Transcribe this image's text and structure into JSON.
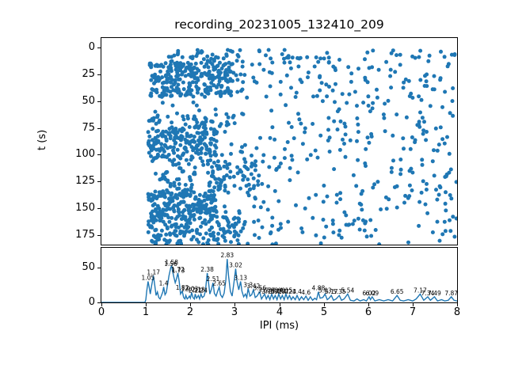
{
  "figure": {
    "title": "recording_20231005_132410_209",
    "background": "#ffffff"
  },
  "colors": {
    "accent": "#1f77b4",
    "text": "#000000",
    "axis": "#000000"
  },
  "chart_data": [
    {
      "type": "scatter",
      "title": "recording_20231005_132410_209",
      "xlabel": "",
      "ylabel": "t (s)",
      "xlim": [
        0,
        8
      ],
      "ylim": [
        -9,
        184
      ],
      "invert_y": true,
      "yticks": [
        0,
        25,
        50,
        75,
        100,
        125,
        150,
        175
      ],
      "grid": false,
      "marker_color": "#1f77b4",
      "marker_radius": 2.5,
      "seed": 20231005,
      "note": "dense noisy scatter of inter-pulse intervals vs recording time; no points below 1 ms",
      "density_clusters": [
        {
          "x0": 1.5,
          "x1": 3.2,
          "t0": 2,
          "t1": 14,
          "n": 40
        },
        {
          "x0": 3.2,
          "x1": 8.0,
          "t0": 2,
          "t1": 14,
          "n": 45
        },
        {
          "x0": 1.05,
          "x1": 2.95,
          "t0": 14,
          "t1": 46,
          "n": 270
        },
        {
          "x0": 2.95,
          "x1": 8.0,
          "t0": 14,
          "t1": 46,
          "n": 90
        },
        {
          "x0": 1.1,
          "x1": 8.0,
          "t0": 46,
          "t1": 63,
          "n": 40
        },
        {
          "x0": 1.05,
          "x1": 3.0,
          "t0": 63,
          "t1": 76,
          "n": 55
        },
        {
          "x0": 3.0,
          "x1": 8.0,
          "t0": 63,
          "t1": 76,
          "n": 25
        },
        {
          "x0": 1.05,
          "x1": 2.6,
          "t0": 76,
          "t1": 106,
          "n": 190
        },
        {
          "x0": 2.6,
          "x1": 8.0,
          "t0": 76,
          "t1": 106,
          "n": 70
        },
        {
          "x0": 1.2,
          "x1": 3.6,
          "t0": 106,
          "t1": 133,
          "n": 120
        },
        {
          "x0": 3.6,
          "x1": 8.0,
          "t0": 106,
          "t1": 133,
          "n": 45
        },
        {
          "x0": 1.05,
          "x1": 2.6,
          "t0": 133,
          "t1": 158,
          "n": 190
        },
        {
          "x0": 2.6,
          "x1": 8.0,
          "t0": 133,
          "t1": 158,
          "n": 55
        },
        {
          "x0": 1.05,
          "x1": 3.1,
          "t0": 158,
          "t1": 184,
          "n": 170
        },
        {
          "x0": 3.1,
          "x1": 6.5,
          "t0": 158,
          "t1": 184,
          "n": 50
        },
        {
          "x0": 6.5,
          "x1": 8.0,
          "t0": 158,
          "t1": 184,
          "n": 12
        }
      ]
    },
    {
      "type": "line",
      "xlabel": "IPI (ms)",
      "ylabel": "",
      "xlim": [
        0,
        8
      ],
      "ylim": [
        0,
        78
      ],
      "xticks": [
        0,
        1,
        2,
        3,
        4,
        5,
        6,
        7,
        8
      ],
      "yticks": [
        0,
        50
      ],
      "grid": false,
      "line_color": "#1f77b4",
      "points": [
        [
          0,
          0
        ],
        [
          0.6,
          0
        ],
        [
          0.98,
          0
        ],
        [
          1.0,
          4
        ],
        [
          1.02,
          16
        ],
        [
          1.05,
          30
        ],
        [
          1.08,
          20
        ],
        [
          1.1,
          12
        ],
        [
          1.13,
          24
        ],
        [
          1.17,
          38
        ],
        [
          1.2,
          25
        ],
        [
          1.23,
          10
        ],
        [
          1.26,
          15
        ],
        [
          1.29,
          7
        ],
        [
          1.32,
          5
        ],
        [
          1.35,
          10
        ],
        [
          1.38,
          15
        ],
        [
          1.4,
          22
        ],
        [
          1.43,
          11
        ],
        [
          1.46,
          14
        ],
        [
          1.49,
          26
        ],
        [
          1.52,
          38
        ],
        [
          1.56,
          50
        ],
        [
          1.58,
          52
        ],
        [
          1.6,
          45
        ],
        [
          1.63,
          36
        ],
        [
          1.66,
          28
        ],
        [
          1.69,
          34
        ],
        [
          1.72,
          42
        ],
        [
          1.75,
          30
        ],
        [
          1.78,
          12
        ],
        [
          1.82,
          16
        ],
        [
          1.85,
          7
        ],
        [
          1.88,
          5
        ],
        [
          1.9,
          10
        ],
        [
          1.93,
          5
        ],
        [
          1.96,
          7
        ],
        [
          1.98,
          9
        ],
        [
          2.0,
          6
        ],
        [
          2.03,
          14
        ],
        [
          2.06,
          7
        ],
        [
          2.09,
          5
        ],
        [
          2.11,
          12
        ],
        [
          2.14,
          6
        ],
        [
          2.18,
          10
        ],
        [
          2.21,
          5
        ],
        [
          2.24,
          12
        ],
        [
          2.27,
          7
        ],
        [
          2.31,
          9
        ],
        [
          2.34,
          16
        ],
        [
          2.38,
          42
        ],
        [
          2.41,
          28
        ],
        [
          2.44,
          12
        ],
        [
          2.48,
          20
        ],
        [
          2.51,
          28
        ],
        [
          2.54,
          13
        ],
        [
          2.58,
          9
        ],
        [
          2.61,
          15
        ],
        [
          2.65,
          22
        ],
        [
          2.68,
          11
        ],
        [
          2.72,
          7
        ],
        [
          2.76,
          13
        ],
        [
          2.8,
          32
        ],
        [
          2.83,
          62
        ],
        [
          2.86,
          38
        ],
        [
          2.9,
          16
        ],
        [
          2.94,
          9
        ],
        [
          2.98,
          28
        ],
        [
          3.02,
          48
        ],
        [
          3.05,
          30
        ],
        [
          3.09,
          18
        ],
        [
          3.13,
          30
        ],
        [
          3.16,
          16
        ],
        [
          3.2,
          8
        ],
        [
          3.24,
          12
        ],
        [
          3.27,
          7
        ],
        [
          3.3,
          20
        ],
        [
          3.34,
          9
        ],
        [
          3.38,
          11
        ],
        [
          3.42,
          18
        ],
        [
          3.46,
          7
        ],
        [
          3.5,
          9
        ],
        [
          3.56,
          15
        ],
        [
          3.6,
          5
        ],
        [
          3.64,
          9
        ],
        [
          3.67,
          12
        ],
        [
          3.71,
          5
        ],
        [
          3.75,
          10
        ],
        [
          3.79,
          4
        ],
        [
          3.83,
          12
        ],
        [
          3.87,
          5
        ],
        [
          3.91,
          10
        ],
        [
          3.95,
          4
        ],
        [
          3.99,
          12
        ],
        [
          4.03,
          5
        ],
        [
          4.07,
          10
        ],
        [
          4.11,
          4
        ],
        [
          4.15,
          12
        ],
        [
          4.19,
          5
        ],
        [
          4.23,
          10
        ],
        [
          4.27,
          4
        ],
        [
          4.31,
          8
        ],
        [
          4.36,
          4
        ],
        [
          4.4,
          10
        ],
        [
          4.45,
          3
        ],
        [
          4.5,
          8
        ],
        [
          4.55,
          4
        ],
        [
          4.6,
          9
        ],
        [
          4.65,
          3
        ],
        [
          4.7,
          8
        ],
        [
          4.75,
          3
        ],
        [
          4.8,
          6
        ],
        [
          4.84,
          4
        ],
        [
          4.88,
          15
        ],
        [
          4.92,
          6
        ],
        [
          4.98,
          7
        ],
        [
          5.03,
          12
        ],
        [
          5.08,
          4
        ],
        [
          5.12,
          6
        ],
        [
          5.17,
          10
        ],
        [
          5.22,
          3
        ],
        [
          5.28,
          5
        ],
        [
          5.35,
          10
        ],
        [
          5.4,
          3
        ],
        [
          5.46,
          5
        ],
        [
          5.54,
          12
        ],
        [
          5.6,
          3
        ],
        [
          5.68,
          2
        ],
        [
          5.75,
          5
        ],
        [
          5.82,
          2
        ],
        [
          5.9,
          4
        ],
        [
          5.96,
          2
        ],
        [
          6.02,
          8
        ],
        [
          6.05,
          4
        ],
        [
          6.09,
          8
        ],
        [
          6.15,
          2
        ],
        [
          6.25,
          4
        ],
        [
          6.35,
          2
        ],
        [
          6.45,
          4
        ],
        [
          6.55,
          2
        ],
        [
          6.65,
          10
        ],
        [
          6.72,
          3
        ],
        [
          6.8,
          2
        ],
        [
          6.9,
          4
        ],
        [
          7.0,
          2
        ],
        [
          7.08,
          5
        ],
        [
          7.17,
          12
        ],
        [
          7.25,
          3
        ],
        [
          7.34,
          8
        ],
        [
          7.4,
          3
        ],
        [
          7.49,
          8
        ],
        [
          7.56,
          2
        ],
        [
          7.65,
          4
        ],
        [
          7.72,
          2
        ],
        [
          7.8,
          3
        ],
        [
          7.87,
          8
        ],
        [
          7.93,
          3
        ],
        [
          8.0,
          2
        ]
      ],
      "annotations": [
        {
          "x": 1.05,
          "y": 30,
          "label": "1.05"
        },
        {
          "x": 1.17,
          "y": 38,
          "label": "1.17"
        },
        {
          "x": 1.4,
          "y": 22,
          "label": "1.4"
        },
        {
          "x": 1.56,
          "y": 50,
          "label": "1.56"
        },
        {
          "x": 1.58,
          "y": 52,
          "label": "1.58"
        },
        {
          "x": 1.72,
          "y": 42,
          "label": "1.72"
        },
        {
          "x": 1.73,
          "y": 40,
          "label": "1.73"
        },
        {
          "x": 1.82,
          "y": 16,
          "label": "1.82"
        },
        {
          "x": 1.9,
          "y": 14,
          "label": "1.9"
        },
        {
          "x": 2.03,
          "y": 14,
          "label": "2.03"
        },
        {
          "x": 2.11,
          "y": 12,
          "label": "2.11"
        },
        {
          "x": 2.18,
          "y": 13,
          "label": "2.18"
        },
        {
          "x": 2.24,
          "y": 12,
          "label": "2.24"
        },
        {
          "x": 2.38,
          "y": 42,
          "label": "2.38"
        },
        {
          "x": 2.51,
          "y": 28,
          "label": "2.51"
        },
        {
          "x": 2.65,
          "y": 22,
          "label": "2.65"
        },
        {
          "x": 2.83,
          "y": 62,
          "label": "2.83"
        },
        {
          "x": 3.02,
          "y": 48,
          "label": "3.02"
        },
        {
          "x": 3.13,
          "y": 30,
          "label": "3.13"
        },
        {
          "x": 3.3,
          "y": 20,
          "label": "3.3"
        },
        {
          "x": 3.42,
          "y": 18,
          "label": "3.42"
        },
        {
          "x": 3.56,
          "y": 15,
          "label": "3.56"
        },
        {
          "x": 3.67,
          "y": 12,
          "label": "3.67"
        },
        {
          "x": 3.75,
          "y": 10,
          "label": "3.75"
        },
        {
          "x": 3.83,
          "y": 12,
          "label": "3.83"
        },
        {
          "x": 3.91,
          "y": 10,
          "label": "3.91"
        },
        {
          "x": 3.99,
          "y": 12,
          "label": "3.99"
        },
        {
          "x": 4.07,
          "y": 10,
          "label": "4.07"
        },
        {
          "x": 4.15,
          "y": 12,
          "label": "4.15"
        },
        {
          "x": 4.23,
          "y": 10,
          "label": "4.23"
        },
        {
          "x": 4.4,
          "y": 10,
          "label": "4.4"
        },
        {
          "x": 4.6,
          "y": 9,
          "label": "4.6"
        },
        {
          "x": 4.88,
          "y": 15,
          "label": "4.88"
        },
        {
          "x": 5.03,
          "y": 12,
          "label": "5.03"
        },
        {
          "x": 5.17,
          "y": 10,
          "label": "5.17"
        },
        {
          "x": 5.35,
          "y": 10,
          "label": "5.35"
        },
        {
          "x": 5.54,
          "y": 12,
          "label": "5.54"
        },
        {
          "x": 6.02,
          "y": 8,
          "label": "6.02"
        },
        {
          "x": 6.09,
          "y": 8,
          "label": "6.09"
        },
        {
          "x": 6.65,
          "y": 10,
          "label": "6.65"
        },
        {
          "x": 7.17,
          "y": 12,
          "label": "7.17"
        },
        {
          "x": 7.34,
          "y": 8,
          "label": "7.34"
        },
        {
          "x": 7.49,
          "y": 8,
          "label": "7.49"
        },
        {
          "x": 7.87,
          "y": 8,
          "label": "7.87"
        }
      ]
    }
  ]
}
